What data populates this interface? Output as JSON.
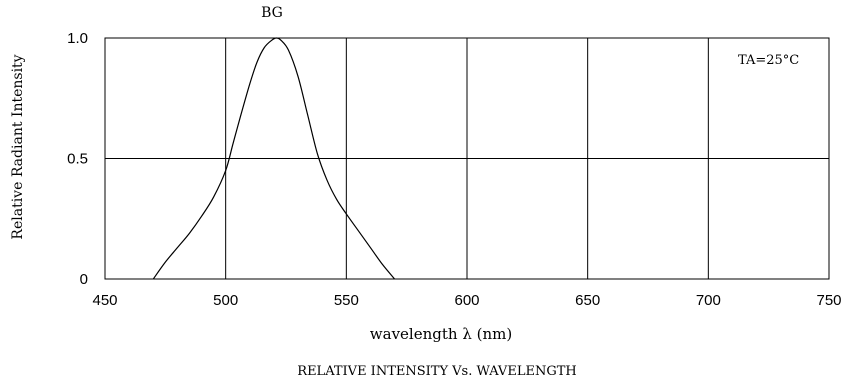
{
  "chart_data": {
    "type": "line",
    "title": "BG",
    "caption": "RELATIVE INTENSITY Vs. WAVELENGTH",
    "xlabel": "wavelength λ (nm)",
    "ylabel": "Relative Radiant Intensity",
    "annotation": "TA=25°C",
    "xlim": [
      450,
      750
    ],
    "ylim": [
      0,
      1.0
    ],
    "x_ticks": [
      450,
      500,
      550,
      600,
      650,
      700,
      750
    ],
    "x_tick_labels": [
      "450",
      "500",
      "550",
      "600",
      "650",
      "700",
      "750"
    ],
    "y_ticks": [
      0,
      0.5,
      1.0
    ],
    "y_tick_labels": [
      "0",
      "0.5",
      "1.0"
    ],
    "grid": true,
    "series": [
      {
        "color": "#000000",
        "x": [
          470,
          475,
          480,
          485,
          490,
          495,
          500,
          503,
          506,
          510,
          513,
          516,
          519,
          521,
          523,
          526,
          530,
          534,
          538,
          542,
          546,
          550,
          555,
          560,
          565,
          570
        ],
        "y": [
          0.0,
          0.07,
          0.13,
          0.19,
          0.26,
          0.34,
          0.45,
          0.56,
          0.67,
          0.81,
          0.9,
          0.96,
          0.99,
          1.0,
          0.99,
          0.95,
          0.84,
          0.68,
          0.52,
          0.41,
          0.33,
          0.27,
          0.2,
          0.13,
          0.06,
          0.0
        ]
      }
    ]
  }
}
